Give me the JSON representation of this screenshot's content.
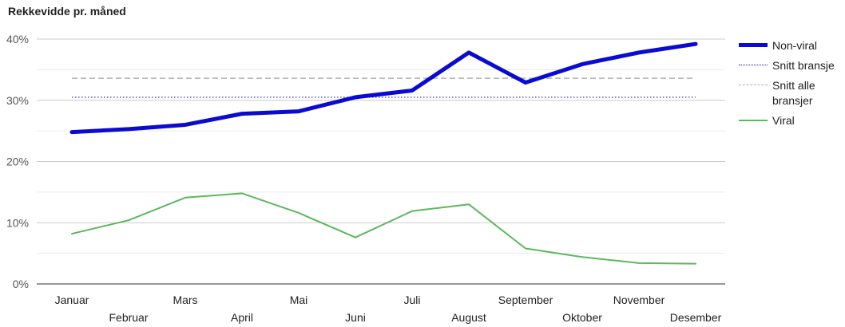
{
  "chart_data": {
    "type": "line",
    "title": "Rekkevidde pr. måned",
    "categories": [
      "Januar",
      "Februar",
      "Mars",
      "April",
      "Mai",
      "Juni",
      "Juli",
      "August",
      "September",
      "Oktober",
      "November",
      "Desember"
    ],
    "yticks": [
      "0%",
      "10%",
      "20%",
      "30%",
      "40%"
    ],
    "ylim": [
      0,
      40
    ],
    "legend_position": "right",
    "series": [
      {
        "name": "Non-viral",
        "color": "#0a0ad2",
        "values": [
          24.8,
          25.3,
          26.0,
          27.8,
          28.2,
          30.5,
          31.6,
          37.8,
          32.9,
          35.9,
          37.8,
          39.2
        ]
      },
      {
        "name": "Snitt bransje",
        "color": "#1a1aa0",
        "values": [
          30.5,
          30.5,
          30.5,
          30.5,
          30.5,
          30.5,
          30.5,
          30.5,
          30.5,
          30.5,
          30.5,
          30.5
        ]
      },
      {
        "name": "Snitt alle bransjer",
        "color": "#b0b0b0",
        "values": [
          33.6,
          33.6,
          33.6,
          33.6,
          33.6,
          33.6,
          33.6,
          33.6,
          33.6,
          33.6,
          33.6,
          33.6
        ]
      },
      {
        "name": "Viral",
        "color": "#5cb85c",
        "values": [
          8.2,
          10.4,
          14.1,
          14.8,
          11.6,
          7.6,
          11.9,
          13.0,
          5.8,
          4.4,
          3.4,
          3.3
        ]
      }
    ]
  }
}
